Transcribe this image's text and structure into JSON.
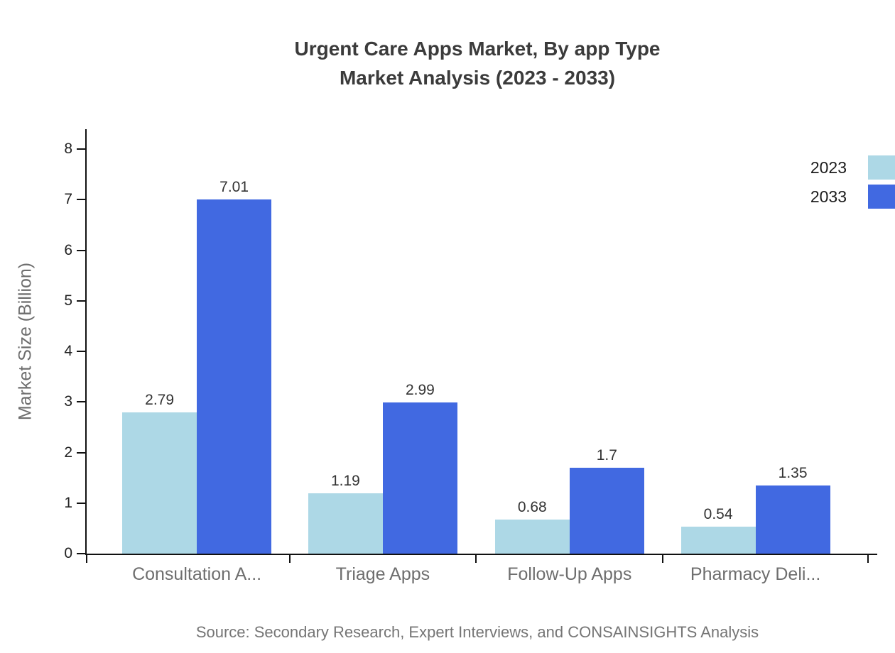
{
  "chart_data": {
    "type": "bar",
    "title": "Urgent Care Apps Market, By app Type",
    "subtitle": "Market Analysis (2023 - 2033)",
    "ylabel": "Market Size (Billion)",
    "xlabel": "",
    "ylim": [
      0,
      8
    ],
    "yticks": [
      0,
      1,
      2,
      3,
      4,
      5,
      6,
      7,
      8
    ],
    "categories": [
      "Consultation A...",
      "Triage Apps",
      "Follow-Up Apps",
      "Pharmacy Deli..."
    ],
    "series": [
      {
        "name": "2023",
        "color": "#ADD8E6",
        "values": [
          2.79,
          1.19,
          0.68,
          0.54
        ]
      },
      {
        "name": "2033",
        "color": "#4169E1",
        "values": [
          7.01,
          2.99,
          1.7,
          1.35
        ]
      }
    ],
    "legend": {
      "position": "top-right",
      "entries": [
        "2023",
        "2033"
      ]
    },
    "grid": false,
    "source": "Source: Secondary Research, Expert Interviews, and CONSAINSIGHTS Analysis"
  },
  "colors": {
    "axis": "#111111",
    "title_text": "#3b3b3b",
    "muted_text": "#6e6e6e",
    "value_label": "#333333",
    "source_text": "#757575"
  }
}
